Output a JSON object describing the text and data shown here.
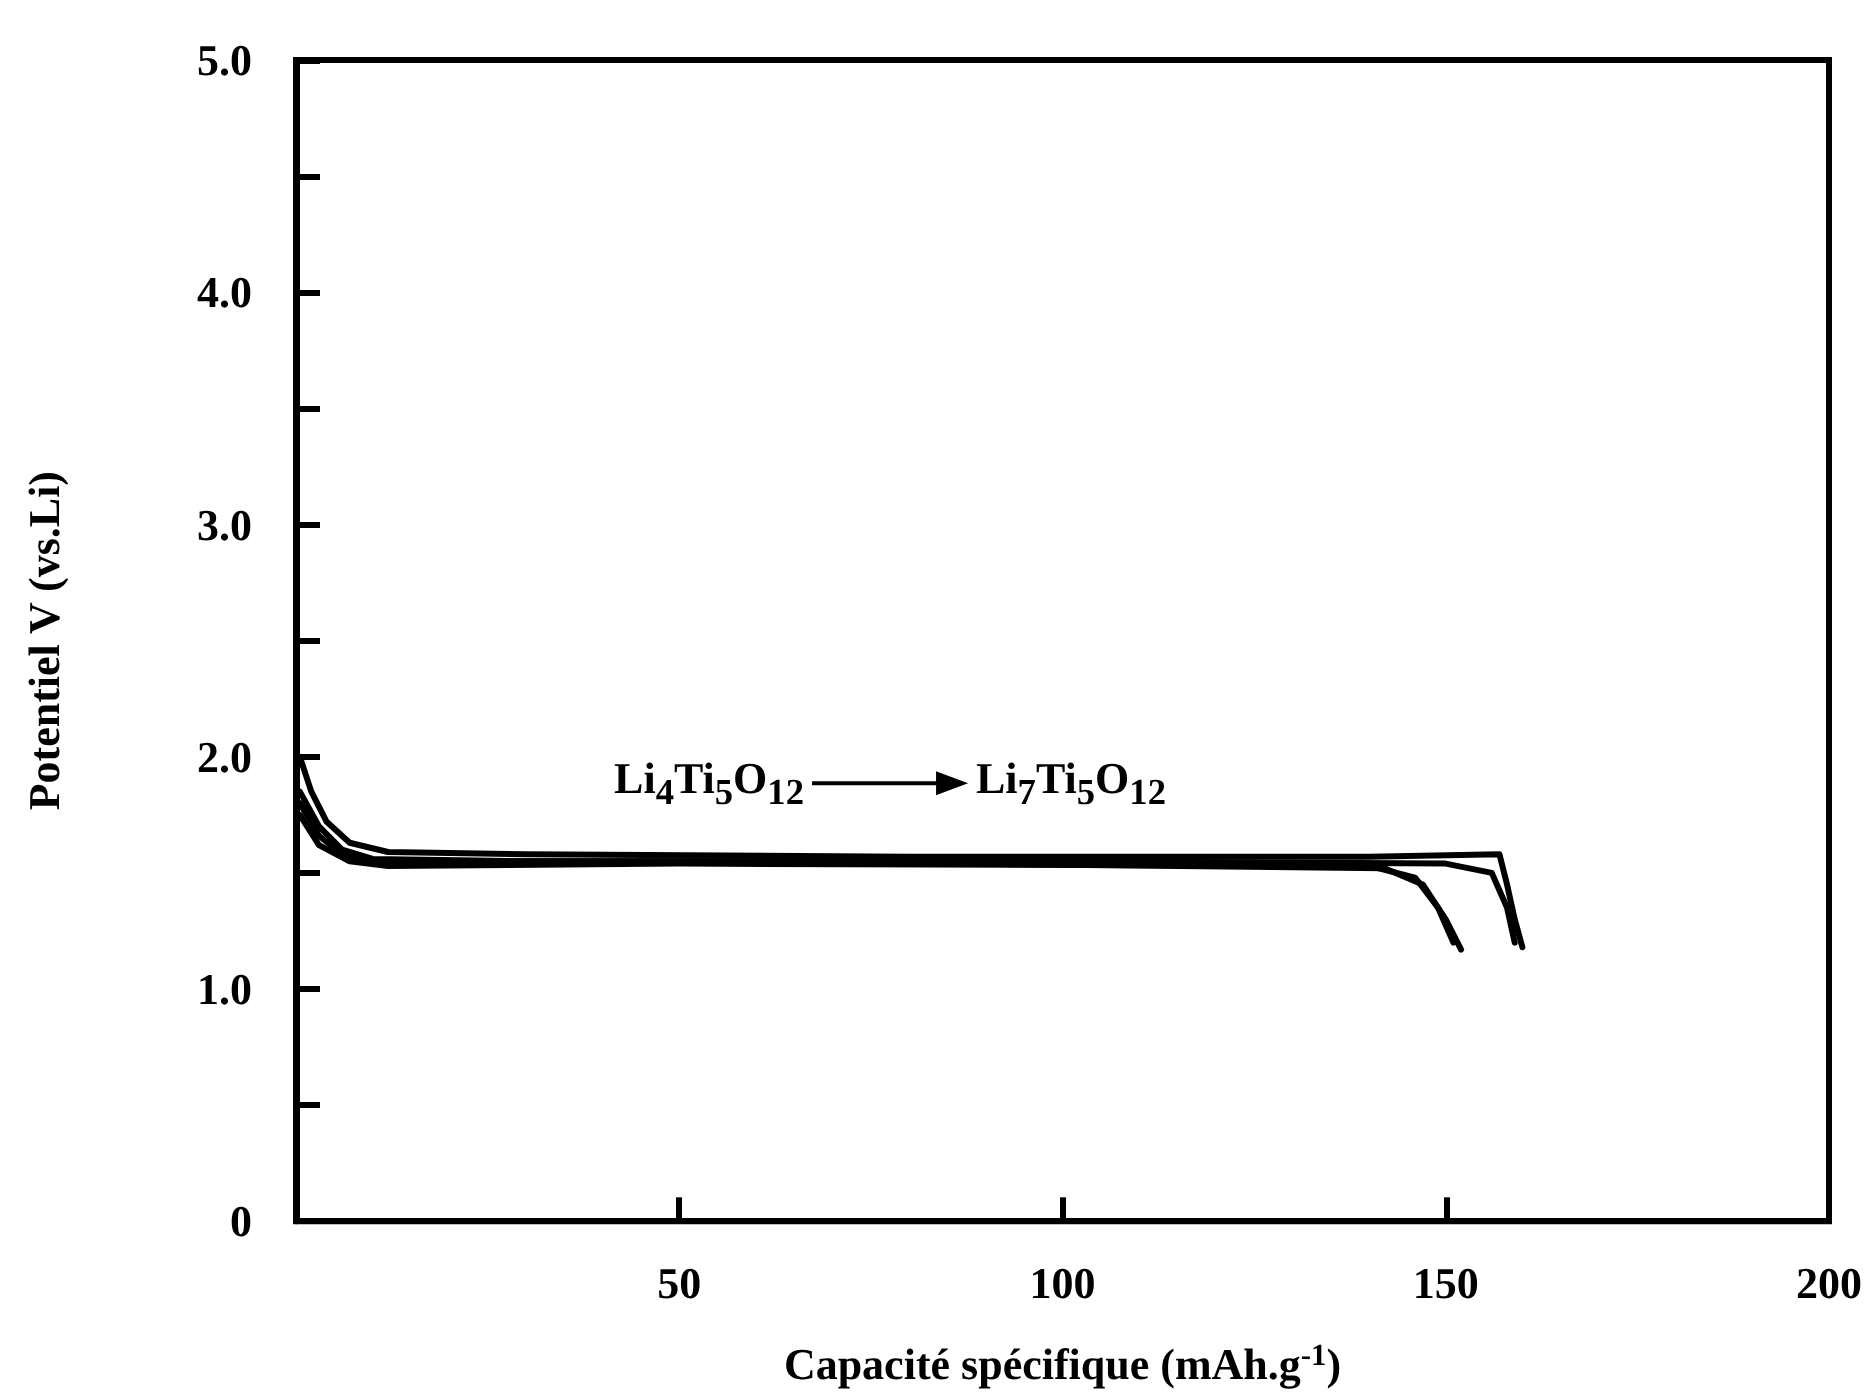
{
  "chart_data": {
    "type": "line",
    "xlabel": "Capacité spécifique (mAh.g$^{-1}$)",
    "ylabel": "Potentiel V (vs.Li)",
    "xlim": [
      0,
      200
    ],
    "xticks": [
      50,
      100,
      150,
      200
    ],
    "ylim": [
      0,
      5
    ],
    "yticks": [
      0,
      {
        "value": 0.5,
        "label": null
      },
      {
        "value": 1,
        "label": "1.0"
      },
      {
        "value": 1.5,
        "label": null
      },
      {
        "value": 2,
        "label": "2.0"
      },
      {
        "value": 2.5,
        "label": null
      },
      {
        "value": 3,
        "label": "3.0"
      },
      {
        "value": 3.5,
        "label": null
      },
      {
        "value": 4,
        "label": "4.0"
      },
      {
        "value": 4.5,
        "label": null
      },
      {
        "value": 5,
        "label": "5.0"
      }
    ],
    "grid": false,
    "marker": "none",
    "line_style": "solid",
    "annotations": [
      "Li$_{4}$Ti$_{5}$O$_{12}$",
      "Li$_{7}$Ti$_{5}$O$_{12}$"
    ],
    "series": [
      {
        "color": "#000000",
        "x": [
          0.5,
          2,
          4,
          7,
          12,
          30,
          80,
          140,
          157,
          158,
          159,
          160
        ],
        "values": [
          2.0,
          1.85,
          1.72,
          1.63,
          1.59,
          1.58,
          1.57,
          1.57,
          1.58,
          1.45,
          1.3,
          1.18
        ]
      },
      {
        "color": "#000000",
        "x": [
          0.5,
          3,
          6,
          10,
          30,
          100,
          150,
          156,
          158,
          159
        ],
        "values": [
          1.85,
          1.7,
          1.6,
          1.56,
          1.55,
          1.55,
          1.54,
          1.5,
          1.35,
          1.2
        ]
      },
      {
        "color": "#000000",
        "x": [
          0.5,
          3,
          7,
          12,
          50,
          140,
          146,
          149,
          151
        ],
        "values": [
          1.75,
          1.62,
          1.55,
          1.53,
          1.54,
          1.53,
          1.48,
          1.35,
          1.2
        ]
      },
      {
        "color": "#000000",
        "x": [
          0.5,
          3,
          6,
          10,
          60,
          142,
          147,
          150,
          152
        ],
        "values": [
          1.8,
          1.66,
          1.58,
          1.55,
          1.55,
          1.52,
          1.45,
          1.3,
          1.17
        ]
      }
    ]
  }
}
